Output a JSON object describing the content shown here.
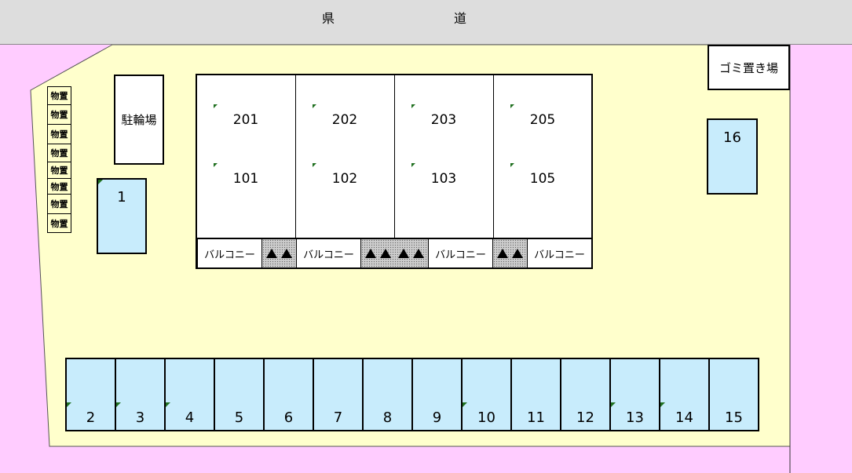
{
  "road": {
    "label_left": "県",
    "label_right": "道"
  },
  "colors": {
    "road": "#dddddd",
    "lot": "#ffffcc",
    "outside": "#ffccff",
    "parking": "#c8ecfc"
  },
  "storage": [
    "物置",
    "物置",
    "物置",
    "物置",
    "物置",
    "物置",
    "物置",
    "物置"
  ],
  "bicycle_parking": "駐輪場",
  "garbage": "ゴミ置き場",
  "rooms_upper": [
    "201",
    "202",
    "203",
    "205"
  ],
  "rooms_lower": [
    "101",
    "102",
    "103",
    "105"
  ],
  "balcony": "バルコニー",
  "parking_side": {
    "p1": "1",
    "p16": "16"
  },
  "parking_row": [
    "2",
    "3",
    "4",
    "5",
    "6",
    "7",
    "8",
    "9",
    "10",
    "11",
    "12",
    "13",
    "14",
    "15"
  ]
}
